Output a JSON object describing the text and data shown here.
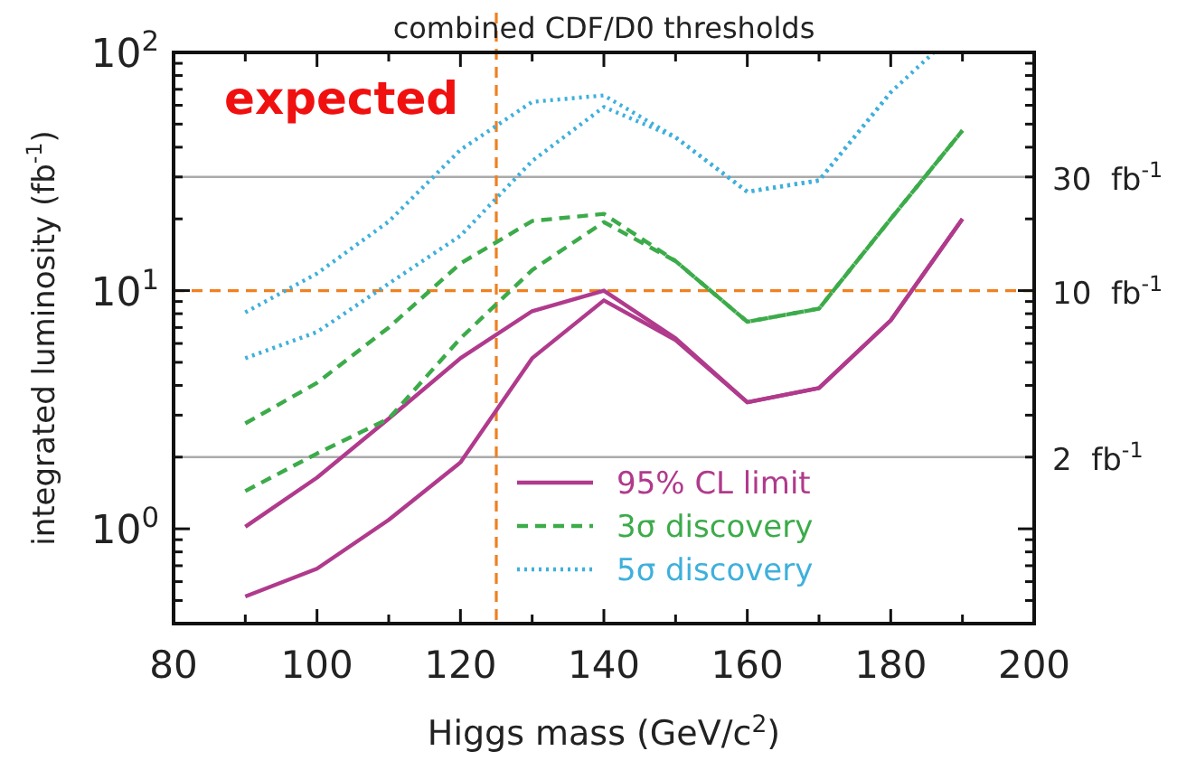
{
  "chart_data": {
    "type": "line",
    "title": "combined CDF/D0 thresholds",
    "xlabel": "Higgs mass (GeV/c$^{2}$)",
    "ylabel": "integrated luminosity (fb$^{-1}$)",
    "annotations": [
      "expected"
    ],
    "x": [
      90,
      100,
      110,
      120,
      130,
      140,
      150,
      160,
      170,
      180,
      190
    ],
    "series": [
      {
        "name": "95% CL limit",
        "color": "#b03a8c",
        "line_style": "solid",
        "values": [
          1.02,
          1.64,
          2.9,
          5.2,
          8.2,
          10,
          6.3,
          3.4,
          3.9,
          7.5,
          20
        ]
      },
      {
        "color": "#b03a8c",
        "line_style": "solid",
        "values": [
          0.52,
          0.68,
          1.09,
          1.9,
          5.2,
          9.1,
          6.2,
          3.4,
          3.9,
          7.5,
          20
        ]
      },
      {
        "name": "3σ discovery",
        "color": "#3cab4a",
        "line_style": "dashed",
        "values": [
          2.77,
          4.1,
          7,
          13,
          19.6,
          21,
          13.3,
          7.4,
          8.4,
          20,
          47
        ]
      },
      {
        "color": "#3cab4a",
        "line_style": "dashed",
        "values": [
          1.44,
          2.07,
          2.9,
          6.3,
          12.2,
          19.4,
          13.3,
          7.4,
          8.4,
          20,
          47
        ]
      },
      {
        "name": "5σ discovery",
        "color": "#3fb0dc",
        "line_style": "dotted",
        "x": [
          90,
          100,
          110,
          120,
          130,
          140,
          150,
          160,
          170,
          180,
          186
        ],
        "values": [
          8.1,
          11.8,
          19.5,
          39,
          62,
          66,
          44,
          26,
          29,
          68,
          100
        ]
      },
      {
        "color": "#3fb0dc",
        "line_style": "dotted",
        "values": [
          5.2,
          6.7,
          10.7,
          17,
          35,
          59,
          44,
          26,
          29,
          68,
          null
        ]
      }
    ],
    "log": "y",
    "xlim": [
      80,
      200
    ],
    "ylim": [
      0.4,
      100
    ],
    "xticks": [
      80,
      {
        "value": 90,
        "label": null
      },
      100,
      {
        "value": 110,
        "label": null
      },
      120,
      {
        "value": 130,
        "label": null
      },
      140,
      {
        "value": 150,
        "label": null
      },
      160,
      {
        "value": 170,
        "label": null
      },
      180,
      {
        "value": 190,
        "label": null
      },
      200
    ],
    "yticks": [
      {
        "value": 0.4,
        "label": null
      },
      {
        "value": 0.5,
        "label": null
      },
      {
        "value": 0.6,
        "label": null
      },
      {
        "value": 0.7,
        "label": null
      },
      {
        "value": 0.8,
        "label": null
      },
      {
        "value": 0.9,
        "label": null
      },
      {
        "value": 1,
        "label": "10$^{0}$"
      },
      {
        "value": 2,
        "label": null
      },
      {
        "value": 3,
        "label": null
      },
      {
        "value": 4,
        "label": null
      },
      {
        "value": 5,
        "label": null
      },
      {
        "value": 6,
        "label": null
      },
      {
        "value": 7,
        "label": null
      },
      {
        "value": 8,
        "label": null
      },
      {
        "value": 9,
        "label": null
      },
      {
        "value": 10,
        "label": "10$^{1}$"
      },
      {
        "value": 20,
        "label": null
      },
      {
        "value": 30,
        "label": null
      },
      {
        "value": 40,
        "label": null
      },
      {
        "value": 50,
        "label": null
      },
      {
        "value": 60,
        "label": null
      },
      {
        "value": 70,
        "label": null
      },
      {
        "value": 80,
        "label": null
      },
      {
        "value": 90,
        "label": null
      },
      {
        "value": 100,
        "label": "10$^{2}$"
      }
    ],
    "ref_lines": [
      {
        "axis": "y",
        "value": 30,
        "label": "30  fb$^{-1}$",
        "color": "#aaaaaa",
        "line_style": "solid"
      },
      {
        "axis": "y",
        "value": 10,
        "label": "10  fb$^{-1}$",
        "color": "#f08020",
        "line_style": "dashed"
      },
      {
        "axis": "y",
        "value": 2,
        "label": "2  fb$^{-1}$",
        "color": "#aaaaaa",
        "line_style": "solid"
      },
      {
        "axis": "x",
        "value": 125,
        "color": "#f08020",
        "line_style": "dashed"
      }
    ],
    "grid": false,
    "legend": "bottom right"
  }
}
